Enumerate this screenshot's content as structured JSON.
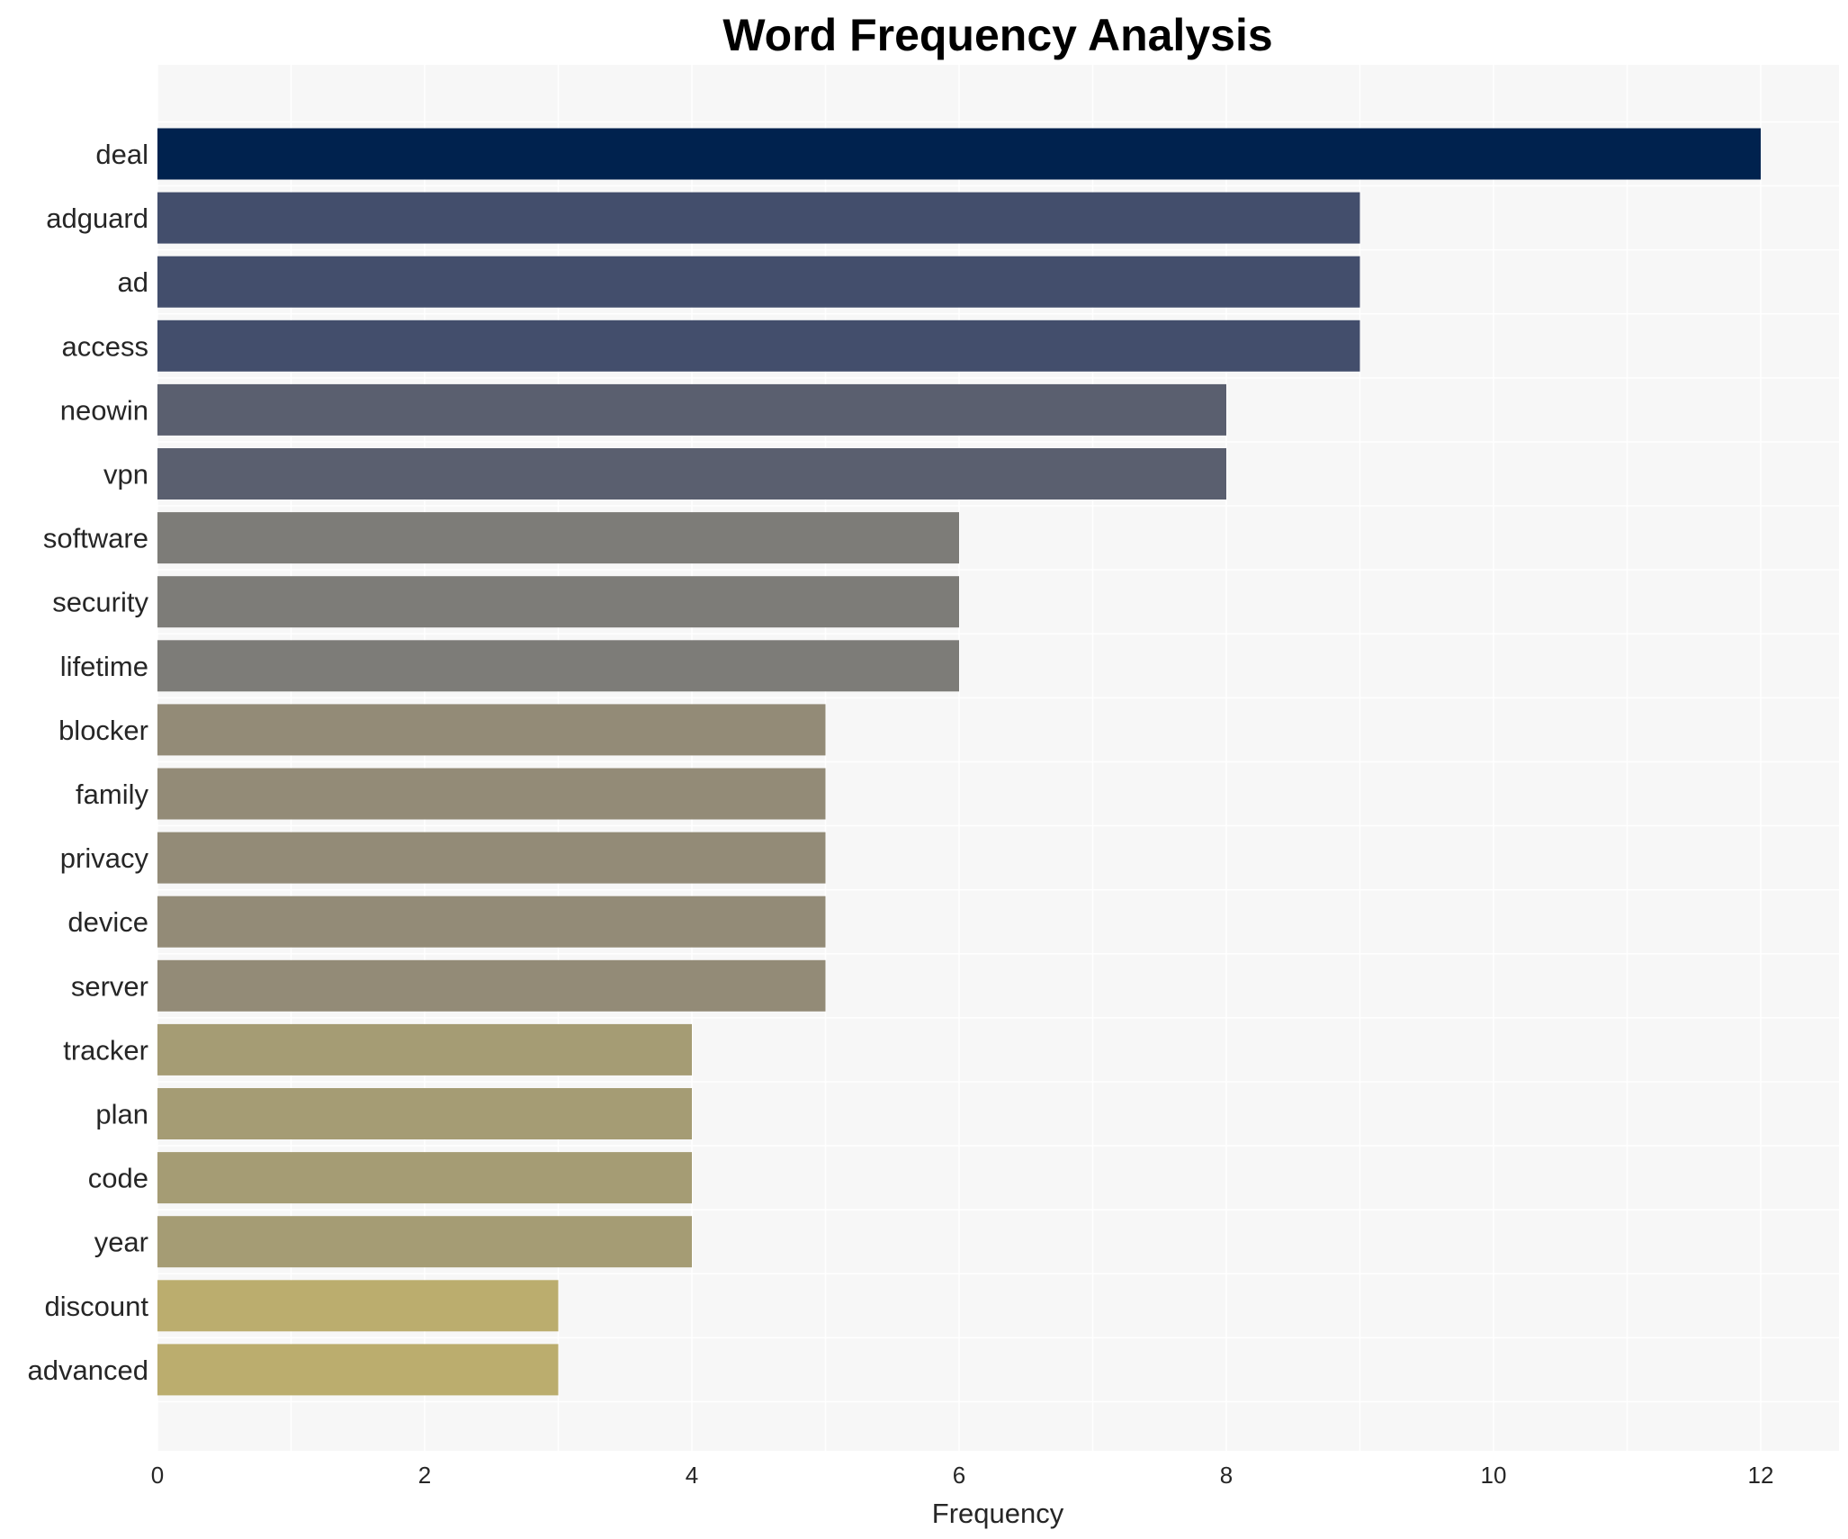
{
  "chart_data": {
    "type": "bar",
    "orientation": "horizontal",
    "title": "Word Frequency Analysis",
    "xlabel": "Frequency",
    "ylabel": "",
    "xlim": [
      0,
      12.6
    ],
    "xticks": [
      0,
      2,
      4,
      6,
      8,
      10,
      12
    ],
    "grid": true,
    "categories": [
      "deal",
      "adguard",
      "ad",
      "access",
      "neowin",
      "vpn",
      "software",
      "security",
      "lifetime",
      "blocker",
      "family",
      "privacy",
      "device",
      "server",
      "tracker",
      "plan",
      "code",
      "year",
      "discount",
      "advanced"
    ],
    "values": [
      12,
      9,
      9,
      9,
      8,
      8,
      6,
      6,
      6,
      5,
      5,
      5,
      5,
      5,
      4,
      4,
      4,
      4,
      3,
      3
    ],
    "colors": {
      "12": "#00224e",
      "9": "#434e6c",
      "8": "#5a5f6f",
      "6": "#7d7c78",
      "5": "#938b77",
      "4": "#a59c74",
      "3": "#bbad6e"
    },
    "plot_background": "#f7f7f7"
  }
}
